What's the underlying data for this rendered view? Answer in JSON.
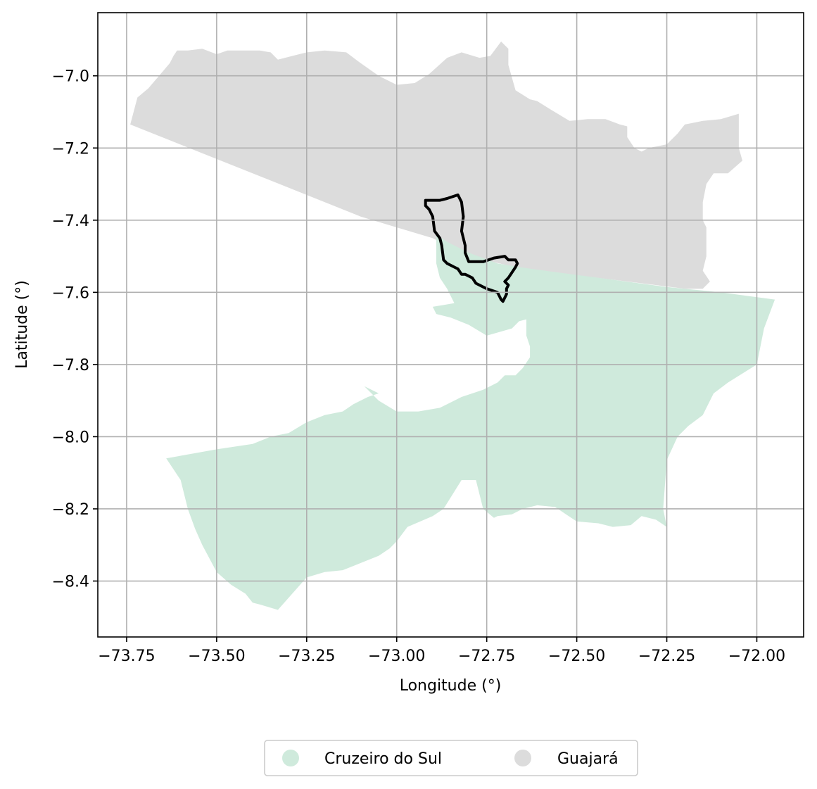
{
  "chart_data": {
    "type": "map",
    "xlabel": "Longitude (°)",
    "ylabel": "Latitude (°)",
    "xlim": [
      -73.83,
      -71.87
    ],
    "ylim": [
      -8.555,
      -6.825
    ],
    "xticks": [
      -73.75,
      -73.5,
      -73.25,
      -73.0,
      -72.75,
      -72.5,
      -72.25,
      -72.0
    ],
    "xtick_labels": [
      "−73.75",
      "−73.50",
      "−73.25",
      "−73.00",
      "−72.75",
      "−72.50",
      "−72.25",
      "−72.00"
    ],
    "yticks": [
      -7.0,
      -7.2,
      -7.4,
      -7.6,
      -7.8,
      -8.0,
      -8.2,
      -8.4
    ],
    "ytick_labels": [
      "−7.0",
      "−7.2",
      "−7.4",
      "−7.6",
      "−7.8",
      "−8.0",
      "−8.2",
      "−8.4"
    ],
    "grid": true,
    "legend_position": "bottom-center",
    "legend": [
      {
        "label": "Cruzeiro do Sul",
        "color": "#cfeadc"
      },
      {
        "label": "Guajará",
        "color": "#dcdcdc"
      }
    ],
    "regions": [
      {
        "name": "Guajará",
        "color": "#dcdcdc",
        "coords": [
          [
            -73.74,
            -7.135
          ],
          [
            -73.72,
            -7.06
          ],
          [
            -73.69,
            -7.035
          ],
          [
            -73.66,
            -7.0
          ],
          [
            -73.63,
            -6.965
          ],
          [
            -73.62,
            -6.945
          ],
          [
            -73.61,
            -6.93
          ],
          [
            -73.58,
            -6.93
          ],
          [
            -73.54,
            -6.925
          ],
          [
            -73.5,
            -6.94
          ],
          [
            -73.47,
            -6.93
          ],
          [
            -73.42,
            -6.93
          ],
          [
            -73.38,
            -6.93
          ],
          [
            -73.35,
            -6.935
          ],
          [
            -73.33,
            -6.955
          ],
          [
            -73.29,
            -6.945
          ],
          [
            -73.25,
            -6.935
          ],
          [
            -73.2,
            -6.93
          ],
          [
            -73.14,
            -6.935
          ],
          [
            -73.1,
            -6.965
          ],
          [
            -73.05,
            -7.0
          ],
          [
            -73.0,
            -7.025
          ],
          [
            -72.95,
            -7.02
          ],
          [
            -72.91,
            -6.995
          ],
          [
            -72.86,
            -6.95
          ],
          [
            -72.82,
            -6.935
          ],
          [
            -72.77,
            -6.95
          ],
          [
            -72.74,
            -6.945
          ],
          [
            -72.71,
            -6.905
          ],
          [
            -72.69,
            -6.925
          ],
          [
            -72.69,
            -6.97
          ],
          [
            -72.67,
            -7.04
          ],
          [
            -72.63,
            -7.065
          ],
          [
            -72.61,
            -7.07
          ],
          [
            -72.57,
            -7.095
          ],
          [
            -72.52,
            -7.125
          ],
          [
            -72.47,
            -7.12
          ],
          [
            -72.42,
            -7.12
          ],
          [
            -72.38,
            -7.135
          ],
          [
            -72.36,
            -7.14
          ],
          [
            -72.36,
            -7.17
          ],
          [
            -72.34,
            -7.2
          ],
          [
            -72.32,
            -7.21
          ],
          [
            -72.3,
            -7.2
          ],
          [
            -72.25,
            -7.19
          ],
          [
            -72.22,
            -7.16
          ],
          [
            -72.2,
            -7.135
          ],
          [
            -72.15,
            -7.125
          ],
          [
            -72.1,
            -7.12
          ],
          [
            -72.05,
            -7.105
          ],
          [
            -72.05,
            -7.2
          ],
          [
            -72.04,
            -7.235
          ],
          [
            -72.08,
            -7.27
          ],
          [
            -72.12,
            -7.27
          ],
          [
            -72.14,
            -7.3
          ],
          [
            -72.15,
            -7.35
          ],
          [
            -72.15,
            -7.4
          ],
          [
            -72.14,
            -7.42
          ],
          [
            -72.14,
            -7.5
          ],
          [
            -72.15,
            -7.54
          ],
          [
            -72.13,
            -7.57
          ],
          [
            -72.15,
            -7.59
          ],
          [
            -72.2,
            -7.59
          ],
          [
            -72.4,
            -7.565
          ],
          [
            -72.65,
            -7.535
          ],
          [
            -72.8,
            -7.5
          ],
          [
            -72.9,
            -7.45
          ],
          [
            -73.1,
            -7.39
          ],
          [
            -73.4,
            -7.27
          ],
          [
            -73.74,
            -7.135
          ]
        ]
      },
      {
        "name": "Cruzeiro do Sul",
        "color": "#cfeadc",
        "coords": [
          [
            -72.89,
            -7.44
          ],
          [
            -72.86,
            -7.46
          ],
          [
            -72.8,
            -7.49
          ],
          [
            -72.72,
            -7.52
          ],
          [
            -72.66,
            -7.53
          ],
          [
            -72.55,
            -7.545
          ],
          [
            -72.4,
            -7.565
          ],
          [
            -72.25,
            -7.585
          ],
          [
            -72.1,
            -7.6
          ],
          [
            -71.95,
            -7.62
          ],
          [
            -71.98,
            -7.7
          ],
          [
            -72.0,
            -7.8
          ],
          [
            -72.08,
            -7.85
          ],
          [
            -72.12,
            -7.88
          ],
          [
            -72.15,
            -7.94
          ],
          [
            -72.19,
            -7.97
          ],
          [
            -72.22,
            -8.0
          ],
          [
            -72.25,
            -8.065
          ],
          [
            -72.26,
            -8.2
          ],
          [
            -72.25,
            -8.25
          ],
          [
            -72.28,
            -8.23
          ],
          [
            -72.32,
            -8.22
          ],
          [
            -72.35,
            -8.245
          ],
          [
            -72.4,
            -8.25
          ],
          [
            -72.44,
            -8.24
          ],
          [
            -72.5,
            -8.235
          ],
          [
            -72.53,
            -8.215
          ],
          [
            -72.56,
            -8.195
          ],
          [
            -72.61,
            -8.19
          ],
          [
            -72.65,
            -8.2
          ],
          [
            -72.68,
            -8.215
          ],
          [
            -72.72,
            -8.22
          ],
          [
            -72.73,
            -8.225
          ],
          [
            -72.76,
            -8.2
          ],
          [
            -72.78,
            -8.12
          ],
          [
            -72.82,
            -8.12
          ],
          [
            -72.87,
            -8.2
          ],
          [
            -72.9,
            -8.22
          ],
          [
            -72.97,
            -8.25
          ],
          [
            -73.0,
            -8.29
          ],
          [
            -73.02,
            -8.31
          ],
          [
            -73.05,
            -8.33
          ],
          [
            -73.1,
            -8.35
          ],
          [
            -73.15,
            -8.37
          ],
          [
            -73.2,
            -8.375
          ],
          [
            -73.25,
            -8.39
          ],
          [
            -73.33,
            -8.48
          ],
          [
            -73.38,
            -8.465
          ],
          [
            -73.4,
            -8.46
          ],
          [
            -73.42,
            -8.435
          ],
          [
            -73.46,
            -8.41
          ],
          [
            -73.5,
            -8.375
          ],
          [
            -73.54,
            -8.3
          ],
          [
            -73.56,
            -8.255
          ],
          [
            -73.58,
            -8.2
          ],
          [
            -73.6,
            -8.12
          ],
          [
            -73.64,
            -8.06
          ],
          [
            -73.5,
            -8.035
          ],
          [
            -73.4,
            -8.02
          ],
          [
            -73.35,
            -8.0
          ],
          [
            -73.3,
            -7.99
          ],
          [
            -73.25,
            -7.96
          ],
          [
            -73.2,
            -7.94
          ],
          [
            -73.15,
            -7.93
          ],
          [
            -73.12,
            -7.91
          ],
          [
            -73.08,
            -7.89
          ],
          [
            -73.05,
            -7.88
          ],
          [
            -73.09,
            -7.86
          ],
          [
            -73.05,
            -7.9
          ],
          [
            -73.0,
            -7.93
          ],
          [
            -72.94,
            -7.93
          ],
          [
            -72.88,
            -7.92
          ],
          [
            -72.82,
            -7.89
          ],
          [
            -72.76,
            -7.87
          ],
          [
            -72.72,
            -7.85
          ],
          [
            -72.7,
            -7.83
          ],
          [
            -72.67,
            -7.83
          ],
          [
            -72.65,
            -7.81
          ],
          [
            -72.63,
            -7.78
          ],
          [
            -72.63,
            -7.75
          ],
          [
            -72.64,
            -7.72
          ],
          [
            -72.64,
            -7.675
          ],
          [
            -72.66,
            -7.68
          ],
          [
            -72.68,
            -7.7
          ],
          [
            -72.75,
            -7.72
          ],
          [
            -72.8,
            -7.69
          ],
          [
            -72.85,
            -7.67
          ],
          [
            -72.89,
            -7.66
          ],
          [
            -72.9,
            -7.64
          ],
          [
            -72.84,
            -7.63
          ],
          [
            -72.86,
            -7.59
          ],
          [
            -72.88,
            -7.56
          ],
          [
            -72.89,
            -7.52
          ],
          [
            -72.89,
            -7.44
          ]
        ]
      }
    ],
    "outline": {
      "color": "#000000",
      "coords": [
        [
          -72.92,
          -7.345
        ],
        [
          -72.88,
          -7.345
        ],
        [
          -72.86,
          -7.34
        ],
        [
          -72.83,
          -7.33
        ],
        [
          -72.82,
          -7.35
        ],
        [
          -72.815,
          -7.39
        ],
        [
          -72.82,
          -7.43
        ],
        [
          -72.81,
          -7.47
        ],
        [
          -72.81,
          -7.49
        ],
        [
          -72.8,
          -7.515
        ],
        [
          -72.76,
          -7.515
        ],
        [
          -72.73,
          -7.505
        ],
        [
          -72.7,
          -7.5
        ],
        [
          -72.69,
          -7.51
        ],
        [
          -72.67,
          -7.51
        ],
        [
          -72.665,
          -7.52
        ],
        [
          -72.67,
          -7.53
        ],
        [
          -72.69,
          -7.56
        ],
        [
          -72.7,
          -7.57
        ],
        [
          -72.69,
          -7.58
        ],
        [
          -72.695,
          -7.59
        ],
        [
          -72.695,
          -7.605
        ],
        [
          -72.7,
          -7.615
        ],
        [
          -72.705,
          -7.625
        ],
        [
          -72.71,
          -7.62
        ],
        [
          -72.72,
          -7.6
        ],
        [
          -72.75,
          -7.59
        ],
        [
          -72.76,
          -7.585
        ],
        [
          -72.77,
          -7.58
        ],
        [
          -72.78,
          -7.575
        ],
        [
          -72.79,
          -7.56
        ],
        [
          -72.81,
          -7.55
        ],
        [
          -72.82,
          -7.55
        ],
        [
          -72.83,
          -7.535
        ],
        [
          -72.84,
          -7.53
        ],
        [
          -72.86,
          -7.52
        ],
        [
          -72.87,
          -7.51
        ],
        [
          -72.875,
          -7.47
        ],
        [
          -72.88,
          -7.45
        ],
        [
          -72.895,
          -7.43
        ],
        [
          -72.9,
          -7.39
        ],
        [
          -72.91,
          -7.37
        ],
        [
          -72.92,
          -7.36
        ],
        [
          -72.92,
          -7.345
        ]
      ]
    }
  }
}
